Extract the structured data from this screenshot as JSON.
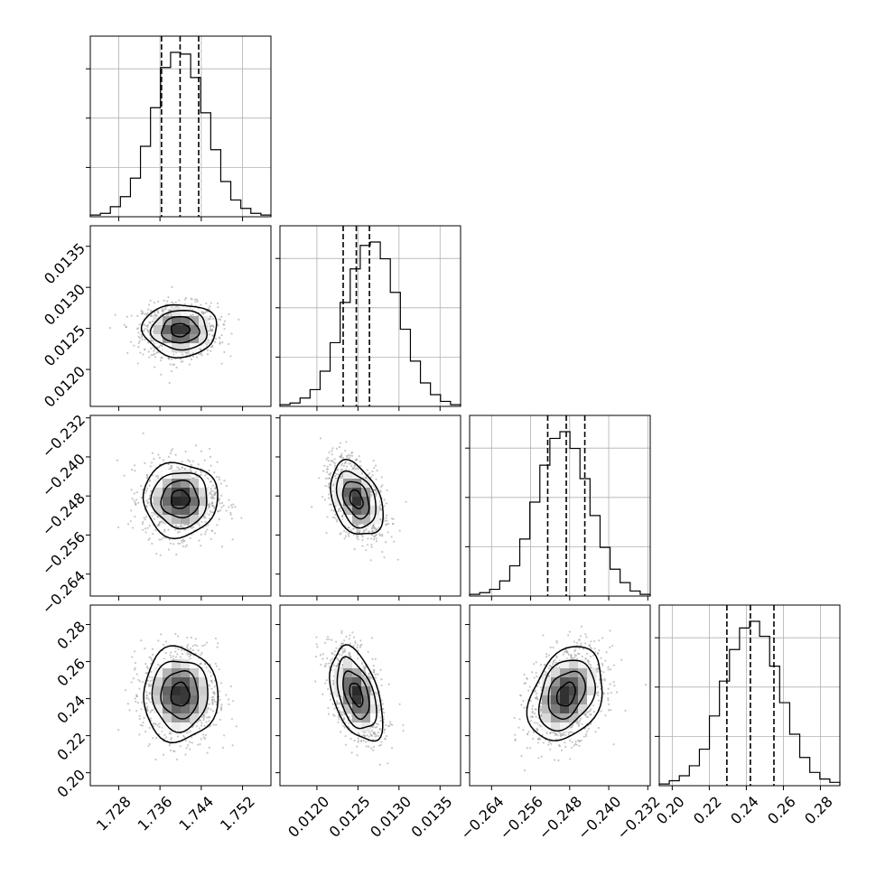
{
  "chart_data": {
    "type": "corner",
    "grid": true,
    "params": [
      {
        "range": [
          1.7225,
          1.7575
        ],
        "ticks": [
          1.728,
          1.736,
          1.744,
          1.752
        ],
        "tick_labels": [
          "1.728",
          "1.736",
          "1.744",
          "1.752"
        ],
        "quantiles": [
          1.7363,
          1.7399,
          1.7435
        ],
        "hist": [
          1,
          2,
          6,
          12,
          23,
          42,
          65,
          89,
          98,
          97,
          83,
          62,
          40,
          21,
          10,
          5,
          2,
          1
        ]
      },
      {
        "range": [
          0.01155,
          0.01375
        ],
        "ticks": [
          0.012,
          0.0125,
          0.013,
          0.0135
        ],
        "tick_labels": [
          "0.0120",
          "0.0125",
          "0.0130",
          "0.0135"
        ],
        "quantiles": [
          0.01232,
          0.01248,
          0.01264
        ],
        "hist": [
          1,
          2,
          5,
          10,
          21,
          38,
          62,
          82,
          96,
          98,
          88,
          68,
          46,
          27,
          14,
          7,
          3,
          1
        ]
      },
      {
        "range": [
          -0.2685,
          -0.2315
        ],
        "ticks": [
          -0.264,
          -0.256,
          -0.248,
          -0.24,
          -0.232
        ],
        "tick_labels": [
          "−0.264",
          "−0.256",
          "−0.248",
          "−0.240",
          "−0.232"
        ],
        "quantiles": [
          -0.2525,
          -0.2487,
          -0.2449
        ],
        "hist": [
          1,
          2,
          4,
          9,
          18,
          34,
          56,
          78,
          94,
          98,
          88,
          70,
          48,
          29,
          16,
          8,
          3,
          1
        ]
      },
      {
        "range": [
          0.193,
          0.2905
        ],
        "ticks": [
          0.2,
          0.22,
          0.24,
          0.26,
          0.28
        ],
        "tick_labels": [
          "0.20",
          "0.22",
          "0.24",
          "0.26",
          "0.28"
        ],
        "quantiles": [
          0.2295,
          0.2422,
          0.2549
        ],
        "hist": [
          1,
          3,
          6,
          12,
          22,
          42,
          63,
          82,
          95,
          99,
          90,
          72,
          50,
          31,
          17,
          8,
          4,
          2
        ]
      }
    ],
    "correlations": [
      [
        1.0,
        0.0,
        0.0,
        0.0
      ],
      [
        0.0,
        1.0,
        -0.35,
        -0.45
      ],
      [
        0.0,
        -0.35,
        1.0,
        0.3
      ],
      [
        0.0,
        -0.45,
        0.3,
        1.0
      ]
    ]
  }
}
